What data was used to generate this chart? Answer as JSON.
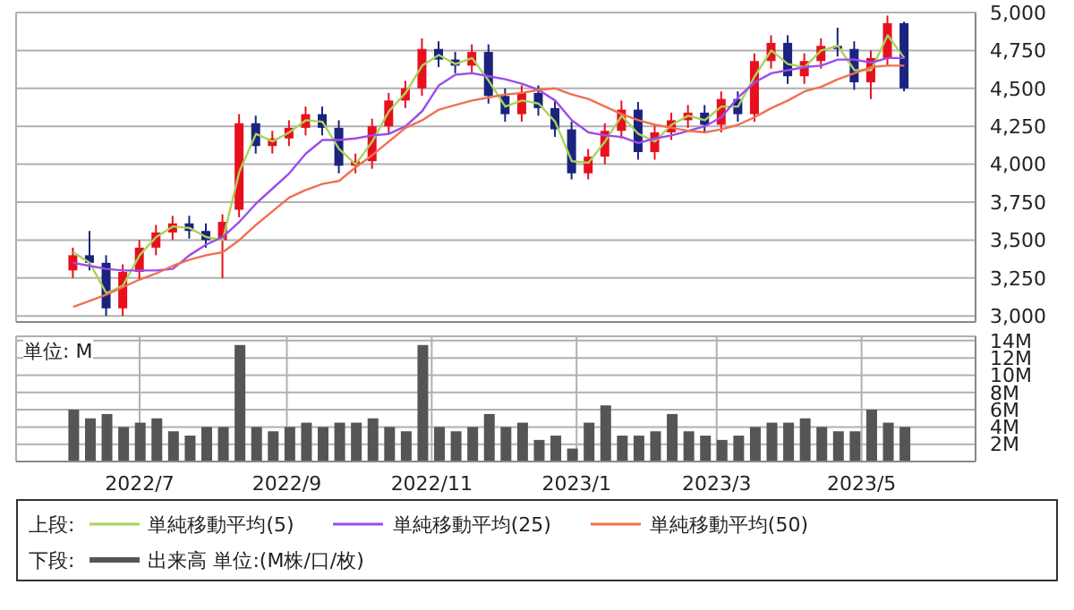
{
  "chart_data": [
    {
      "type": "candlestick",
      "x": [
        "2022-06-03",
        "2022-06-10",
        "2022-06-17",
        "2022-06-24",
        "2022-07-01",
        "2022-07-08",
        "2022-07-15",
        "2022-07-22",
        "2022-07-29",
        "2022-08-05",
        "2022-08-12",
        "2022-08-19",
        "2022-08-26",
        "2022-09-02",
        "2022-09-09",
        "2022-09-16",
        "2022-09-23",
        "2022-09-30",
        "2022-10-07",
        "2022-10-14",
        "2022-10-21",
        "2022-10-28",
        "2022-11-04",
        "2022-11-11",
        "2022-11-18",
        "2022-11-25",
        "2022-12-02",
        "2022-12-09",
        "2022-12-16",
        "2022-12-23",
        "2022-12-30",
        "2023-01-06",
        "2023-01-13",
        "2023-01-20",
        "2023-01-27",
        "2023-02-03",
        "2023-02-10",
        "2023-02-17",
        "2023-02-24",
        "2023-03-03",
        "2023-03-10",
        "2023-03-17",
        "2023-03-24",
        "2023-03-31",
        "2023-04-07",
        "2023-04-14",
        "2023-04-21",
        "2023-04-28",
        "2023-05-05",
        "2023-05-12",
        "2023-05-19"
      ],
      "ohlc": [
        [
          3300,
          3450,
          3250,
          3400
        ],
        [
          3400,
          3560,
          3300,
          3350
        ],
        [
          3350,
          3400,
          3000,
          3050
        ],
        [
          3050,
          3340,
          3000,
          3290
        ],
        [
          3290,
          3500,
          3240,
          3450
        ],
        [
          3450,
          3600,
          3400,
          3550
        ],
        [
          3550,
          3660,
          3500,
          3610
        ],
        [
          3610,
          3660,
          3510,
          3560
        ],
        [
          3560,
          3610,
          3450,
          3500
        ],
        [
          3500,
          3670,
          3250,
          3620
        ],
        [
          3700,
          4330,
          3650,
          4270
        ],
        [
          4270,
          4320,
          4070,
          4120
        ],
        [
          4120,
          4220,
          4070,
          4170
        ],
        [
          4170,
          4290,
          4120,
          4240
        ],
        [
          4240,
          4380,
          4190,
          4330
        ],
        [
          4330,
          4380,
          4190,
          4240
        ],
        [
          4240,
          4290,
          3940,
          3990
        ],
        [
          3990,
          4070,
          3940,
          4020
        ],
        [
          4020,
          4300,
          3970,
          4250
        ],
        [
          4250,
          4470,
          4200,
          4420
        ],
        [
          4420,
          4550,
          4370,
          4500
        ],
        [
          4500,
          4830,
          4450,
          4760
        ],
        [
          4760,
          4810,
          4640,
          4690
        ],
        [
          4690,
          4740,
          4600,
          4650
        ],
        [
          4650,
          4790,
          4600,
          4740
        ],
        [
          4740,
          4790,
          4400,
          4450
        ],
        [
          4450,
          4500,
          4280,
          4330
        ],
        [
          4330,
          4520,
          4280,
          4470
        ],
        [
          4470,
          4520,
          4320,
          4370
        ],
        [
          4370,
          4420,
          4180,
          4230
        ],
        [
          4230,
          4280,
          3900,
          3940
        ],
        [
          3940,
          4100,
          3900,
          4050
        ],
        [
          4050,
          4270,
          4000,
          4220
        ],
        [
          4220,
          4420,
          4170,
          4360
        ],
        [
          4360,
          4410,
          4030,
          4080
        ],
        [
          4080,
          4260,
          4030,
          4210
        ],
        [
          4210,
          4340,
          4160,
          4290
        ],
        [
          4290,
          4390,
          4240,
          4340
        ],
        [
          4340,
          4390,
          4210,
          4260
        ],
        [
          4260,
          4480,
          4210,
          4430
        ],
        [
          4430,
          4480,
          4280,
          4330
        ],
        [
          4330,
          4730,
          4280,
          4680
        ],
        [
          4680,
          4850,
          4630,
          4800
        ],
        [
          4800,
          4850,
          4530,
          4580
        ],
        [
          4580,
          4730,
          4530,
          4680
        ],
        [
          4680,
          4830,
          4630,
          4780
        ],
        [
          4780,
          4900,
          4710,
          4760
        ],
        [
          4760,
          4810,
          4490,
          4540
        ],
        [
          4540,
          4750,
          4430,
          4700
        ],
        [
          4700,
          4980,
          4650,
          4930
        ],
        [
          4930,
          4940,
          4480,
          4500
        ]
      ],
      "colors": [
        "#e8101e",
        "#1a237e",
        "#1a237e",
        "#e8101e",
        "#e8101e",
        "#e8101e",
        "#e8101e",
        "#1a237e",
        "#1a237e",
        "#e8101e",
        "#e8101e",
        "#1a237e",
        "#e8101e",
        "#e8101e",
        "#e8101e",
        "#1a237e",
        "#1a237e",
        "#e8101e",
        "#e8101e",
        "#e8101e",
        "#e8101e",
        "#e8101e",
        "#1a237e",
        "#1a237e",
        "#e8101e",
        "#1a237e",
        "#1a237e",
        "#e8101e",
        "#1a237e",
        "#1a237e",
        "#1a237e",
        "#e8101e",
        "#e8101e",
        "#e8101e",
        "#1a237e",
        "#e8101e",
        "#e8101e",
        "#e8101e",
        "#1a237e",
        "#e8101e",
        "#1a237e",
        "#e8101e",
        "#e8101e",
        "#1a237e",
        "#e8101e",
        "#e8101e",
        "#1a237e",
        "#1a237e",
        "#e8101e",
        "#e8101e",
        "#1a237e"
      ],
      "series": [
        {
          "type": "line",
          "name": "単純移動平均(5)",
          "color": "#a8d35a",
          "values": [
            3420,
            3350,
            3150,
            3200,
            3400,
            3520,
            3590,
            3580,
            3520,
            3500,
            3950,
            4200,
            4150,
            4210,
            4290,
            4280,
            4100,
            4000,
            4150,
            4350,
            4470,
            4650,
            4720,
            4660,
            4700,
            4550,
            4380,
            4420,
            4400,
            4280,
            4020,
            4010,
            4150,
            4320,
            4200,
            4150,
            4260,
            4320,
            4290,
            4380,
            4380,
            4580,
            4750,
            4660,
            4640,
            4750,
            4780,
            4620,
            4620,
            4850,
            4700
          ]
        },
        {
          "type": "line",
          "name": "単純移動平均(25)",
          "color": "#9b4dea",
          "values": [
            3350,
            3330,
            3310,
            3300,
            3300,
            3300,
            3310,
            3400,
            3470,
            3520,
            3620,
            3740,
            3840,
            3940,
            4070,
            4160,
            4160,
            4170,
            4190,
            4200,
            4250,
            4350,
            4520,
            4590,
            4600,
            4580,
            4560,
            4530,
            4490,
            4420,
            4290,
            4210,
            4190,
            4180,
            4140,
            4170,
            4190,
            4220,
            4250,
            4310,
            4440,
            4540,
            4600,
            4620,
            4640,
            4650,
            4690,
            4690,
            4670,
            4700,
            4700
          ]
        },
        {
          "type": "line",
          "name": "単純移動平均(50)",
          "color": "#f07050",
          "values": [
            3060,
            3100,
            3140,
            3190,
            3240,
            3280,
            3330,
            3370,
            3400,
            3420,
            3500,
            3600,
            3690,
            3780,
            3830,
            3870,
            3890,
            3980,
            4060,
            4150,
            4240,
            4290,
            4360,
            4390,
            4420,
            4440,
            4460,
            4470,
            4490,
            4500,
            4460,
            4430,
            4380,
            4330,
            4290,
            4260,
            4240,
            4220,
            4210,
            4230,
            4260,
            4310,
            4370,
            4420,
            4480,
            4510,
            4560,
            4600,
            4640,
            4650,
            4650
          ]
        }
      ],
      "xlim": [
        "2022-05-10",
        "2023-06-18"
      ],
      "xticks": [
        {
          "value": "2022-07-01",
          "label": null
        },
        {
          "value": "2022-09-01",
          "label": null
        },
        {
          "value": "2022-11-01",
          "label": null
        },
        {
          "value": "2023-01-01",
          "label": null
        },
        {
          "value": "2023-03-01",
          "label": null
        },
        {
          "value": "2023-05-01",
          "label": null
        }
      ],
      "ylim": [
        2960,
        5000
      ],
      "yticks": [
        {
          "value": 3000,
          "label": "3,000"
        },
        {
          "value": 3250,
          "label": "3,250"
        },
        {
          "value": 3500,
          "label": "3,500"
        },
        {
          "value": 3750,
          "label": "3,750"
        },
        {
          "value": 4000,
          "label": "4,000"
        },
        {
          "value": 4250,
          "label": "4,250"
        },
        {
          "value": 4500,
          "label": "4,500"
        },
        {
          "value": 4750,
          "label": "4,750"
        },
        {
          "value": 5000,
          "label": "5,000"
        }
      ],
      "tick_labels": "y",
      "grid": true,
      "legend": "bottom",
      "legend_title": "上段:"
    },
    {
      "type": "bar",
      "x": [
        "2022-06-03",
        "2022-06-10",
        "2022-06-17",
        "2022-06-24",
        "2022-07-01",
        "2022-07-08",
        "2022-07-15",
        "2022-07-22",
        "2022-07-29",
        "2022-08-05",
        "2022-08-12",
        "2022-08-19",
        "2022-08-26",
        "2022-09-02",
        "2022-09-09",
        "2022-09-16",
        "2022-09-23",
        "2022-09-30",
        "2022-10-07",
        "2022-10-14",
        "2022-10-21",
        "2022-10-28",
        "2022-11-04",
        "2022-11-11",
        "2022-11-18",
        "2022-11-25",
        "2022-12-02",
        "2022-12-09",
        "2022-12-16",
        "2022-12-23",
        "2022-12-30",
        "2023-01-06",
        "2023-01-13",
        "2023-01-20",
        "2023-01-27",
        "2023-02-03",
        "2023-02-10",
        "2023-02-17",
        "2023-02-24",
        "2023-03-03",
        "2023-03-10",
        "2023-03-17",
        "2023-03-24",
        "2023-03-31",
        "2023-04-07",
        "2023-04-14",
        "2023-04-21",
        "2023-04-28",
        "2023-05-05",
        "2023-05-12",
        "2023-05-19"
      ],
      "series": [
        {
          "name": "出来高 単位:(M株/口/枚)",
          "color": "#555555",
          "values": [
            6,
            5,
            5.5,
            4,
            4.5,
            5,
            3.5,
            3,
            4,
            4,
            13.5,
            4,
            3.5,
            4,
            4.5,
            4,
            4.5,
            4.5,
            5,
            4,
            3.5,
            13.5,
            4,
            3.5,
            4,
            5.5,
            4,
            4.5,
            2.5,
            3,
            1.5,
            4.5,
            6.5,
            3,
            3,
            3.5,
            5.5,
            3.5,
            3,
            2.5,
            3,
            4,
            4.5,
            4.5,
            5,
            4,
            3.5,
            3.5,
            6,
            4.5,
            4
          ]
        }
      ],
      "xlim": [
        "2022-05-10",
        "2023-06-18"
      ],
      "xticks": [
        {
          "value": "2022-07-01",
          "label": "2022/7"
        },
        {
          "value": "2022-09-01",
          "label": "2022/9"
        },
        {
          "value": "2022-11-01",
          "label": "2022/11"
        },
        {
          "value": "2023-01-01",
          "label": "2023/1"
        },
        {
          "value": "2023-03-01",
          "label": "2023/3"
        },
        {
          "value": "2023-05-01",
          "label": "2023/5"
        }
      ],
      "ylim": [
        0,
        14.5
      ],
      "yticks": [
        {
          "value": 2,
          "label": "2M"
        },
        {
          "value": 4,
          "label": "4M"
        },
        {
          "value": 6,
          "label": "6M"
        },
        {
          "value": 8,
          "label": "8M"
        },
        {
          "value": 10,
          "label": "10M"
        },
        {
          "value": 12,
          "label": "12M"
        },
        {
          "value": 14,
          "label": "14M"
        }
      ],
      "annotations": [
        "単位: M"
      ],
      "grid": true,
      "legend": "bottom",
      "legend_title": "下段:"
    }
  ]
}
